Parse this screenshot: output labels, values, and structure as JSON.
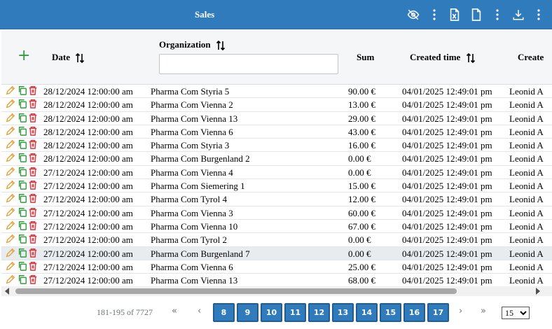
{
  "header": {
    "title": "Sales"
  },
  "columns": {
    "date": "Date",
    "organization": "Organization",
    "sum": "Sum",
    "created_time": "Created time",
    "creator": "Create"
  },
  "filter": {
    "organization_value": ""
  },
  "rows": [
    {
      "date": "28/12/2024 12:00:00 am",
      "org": "Pharma Com Styria 5",
      "sum": "90.00 €",
      "created": "04/01/2025 12:49:01 pm",
      "creator": "Leonid A"
    },
    {
      "date": "28/12/2024 12:00:00 am",
      "org": "Pharma Com Vienna 2",
      "sum": "13.00 €",
      "created": "04/01/2025 12:49:01 pm",
      "creator": "Leonid A"
    },
    {
      "date": "28/12/2024 12:00:00 am",
      "org": "Pharma Com Vienna 13",
      "sum": "29.00 €",
      "created": "04/01/2025 12:49:01 pm",
      "creator": "Leonid A"
    },
    {
      "date": "28/12/2024 12:00:00 am",
      "org": "Pharma Com Vienna 6",
      "sum": "43.00 €",
      "created": "04/01/2025 12:49:01 pm",
      "creator": "Leonid A"
    },
    {
      "date": "28/12/2024 12:00:00 am",
      "org": "Pharma Com Styria 3",
      "sum": "16.00 €",
      "created": "04/01/2025 12:49:01 pm",
      "creator": "Leonid A"
    },
    {
      "date": "28/12/2024 12:00:00 am",
      "org": "Pharma Com Burgenland 2",
      "sum": "0.00 €",
      "created": "04/01/2025 12:49:01 pm",
      "creator": "Leonid A"
    },
    {
      "date": "27/12/2024 12:00:00 am",
      "org": "Pharma Com Vienna 4",
      "sum": "0.00 €",
      "created": "04/01/2025 12:49:01 pm",
      "creator": "Leonid A"
    },
    {
      "date": "27/12/2024 12:00:00 am",
      "org": "Pharma Com Siemering 1",
      "sum": "15.00 €",
      "created": "04/01/2025 12:49:01 pm",
      "creator": "Leonid A"
    },
    {
      "date": "27/12/2024 12:00:00 am",
      "org": "Pharma Com Tyrol 4",
      "sum": "12.00 €",
      "created": "04/01/2025 12:49:01 pm",
      "creator": "Leonid A"
    },
    {
      "date": "27/12/2024 12:00:00 am",
      "org": "Pharma Com Vienna 3",
      "sum": "60.00 €",
      "created": "04/01/2025 12:49:01 pm",
      "creator": "Leonid A"
    },
    {
      "date": "27/12/2024 12:00:00 am",
      "org": "Pharma Com Vienna 10",
      "sum": "67.00 €",
      "created": "04/01/2025 12:49:01 pm",
      "creator": "Leonid A"
    },
    {
      "date": "27/12/2024 12:00:00 am",
      "org": "Pharma Com Tyrol 2",
      "sum": "0.00 €",
      "created": "04/01/2025 12:49:01 pm",
      "creator": "Leonid A"
    },
    {
      "date": "27/12/2024 12:00:00 am",
      "org": "Pharma Com Burgenland 7",
      "sum": "0.00 €",
      "created": "04/01/2025 12:49:01 pm",
      "creator": "Leonid A",
      "highlighted": true
    },
    {
      "date": "27/12/2024 12:00:00 am",
      "org": "Pharma Com Vienna 6",
      "sum": "25.00 €",
      "created": "04/01/2025 12:49:01 pm",
      "creator": "Leonid A"
    },
    {
      "date": "27/12/2024 12:00:00 am",
      "org": "Pharma Com Vienna 13",
      "sum": "68.00 €",
      "created": "04/01/2025 12:49:01 pm",
      "creator": "Leonid A"
    }
  ],
  "pagination": {
    "info": "181-195 of 7727",
    "pages": [
      "8",
      "9",
      "10",
      "11",
      "12",
      "13",
      "14",
      "15",
      "16",
      "17"
    ],
    "page_size": "15",
    "page_size_options": [
      "15"
    ]
  },
  "colors": {
    "header_bg": "#2f7bbb",
    "edit_icon": "#e8a23a",
    "copy_icon": "#2e9e3c",
    "delete_icon": "#d9363e"
  },
  "icons": {
    "toolbar": [
      "eye-off-icon",
      "more-vertical-icon",
      "excel-file-icon",
      "file-icon",
      "more-vertical-icon",
      "download-icon",
      "more-vertical-icon"
    ],
    "row_actions": [
      "pencil-icon",
      "copy-icon",
      "trash-icon"
    ]
  }
}
